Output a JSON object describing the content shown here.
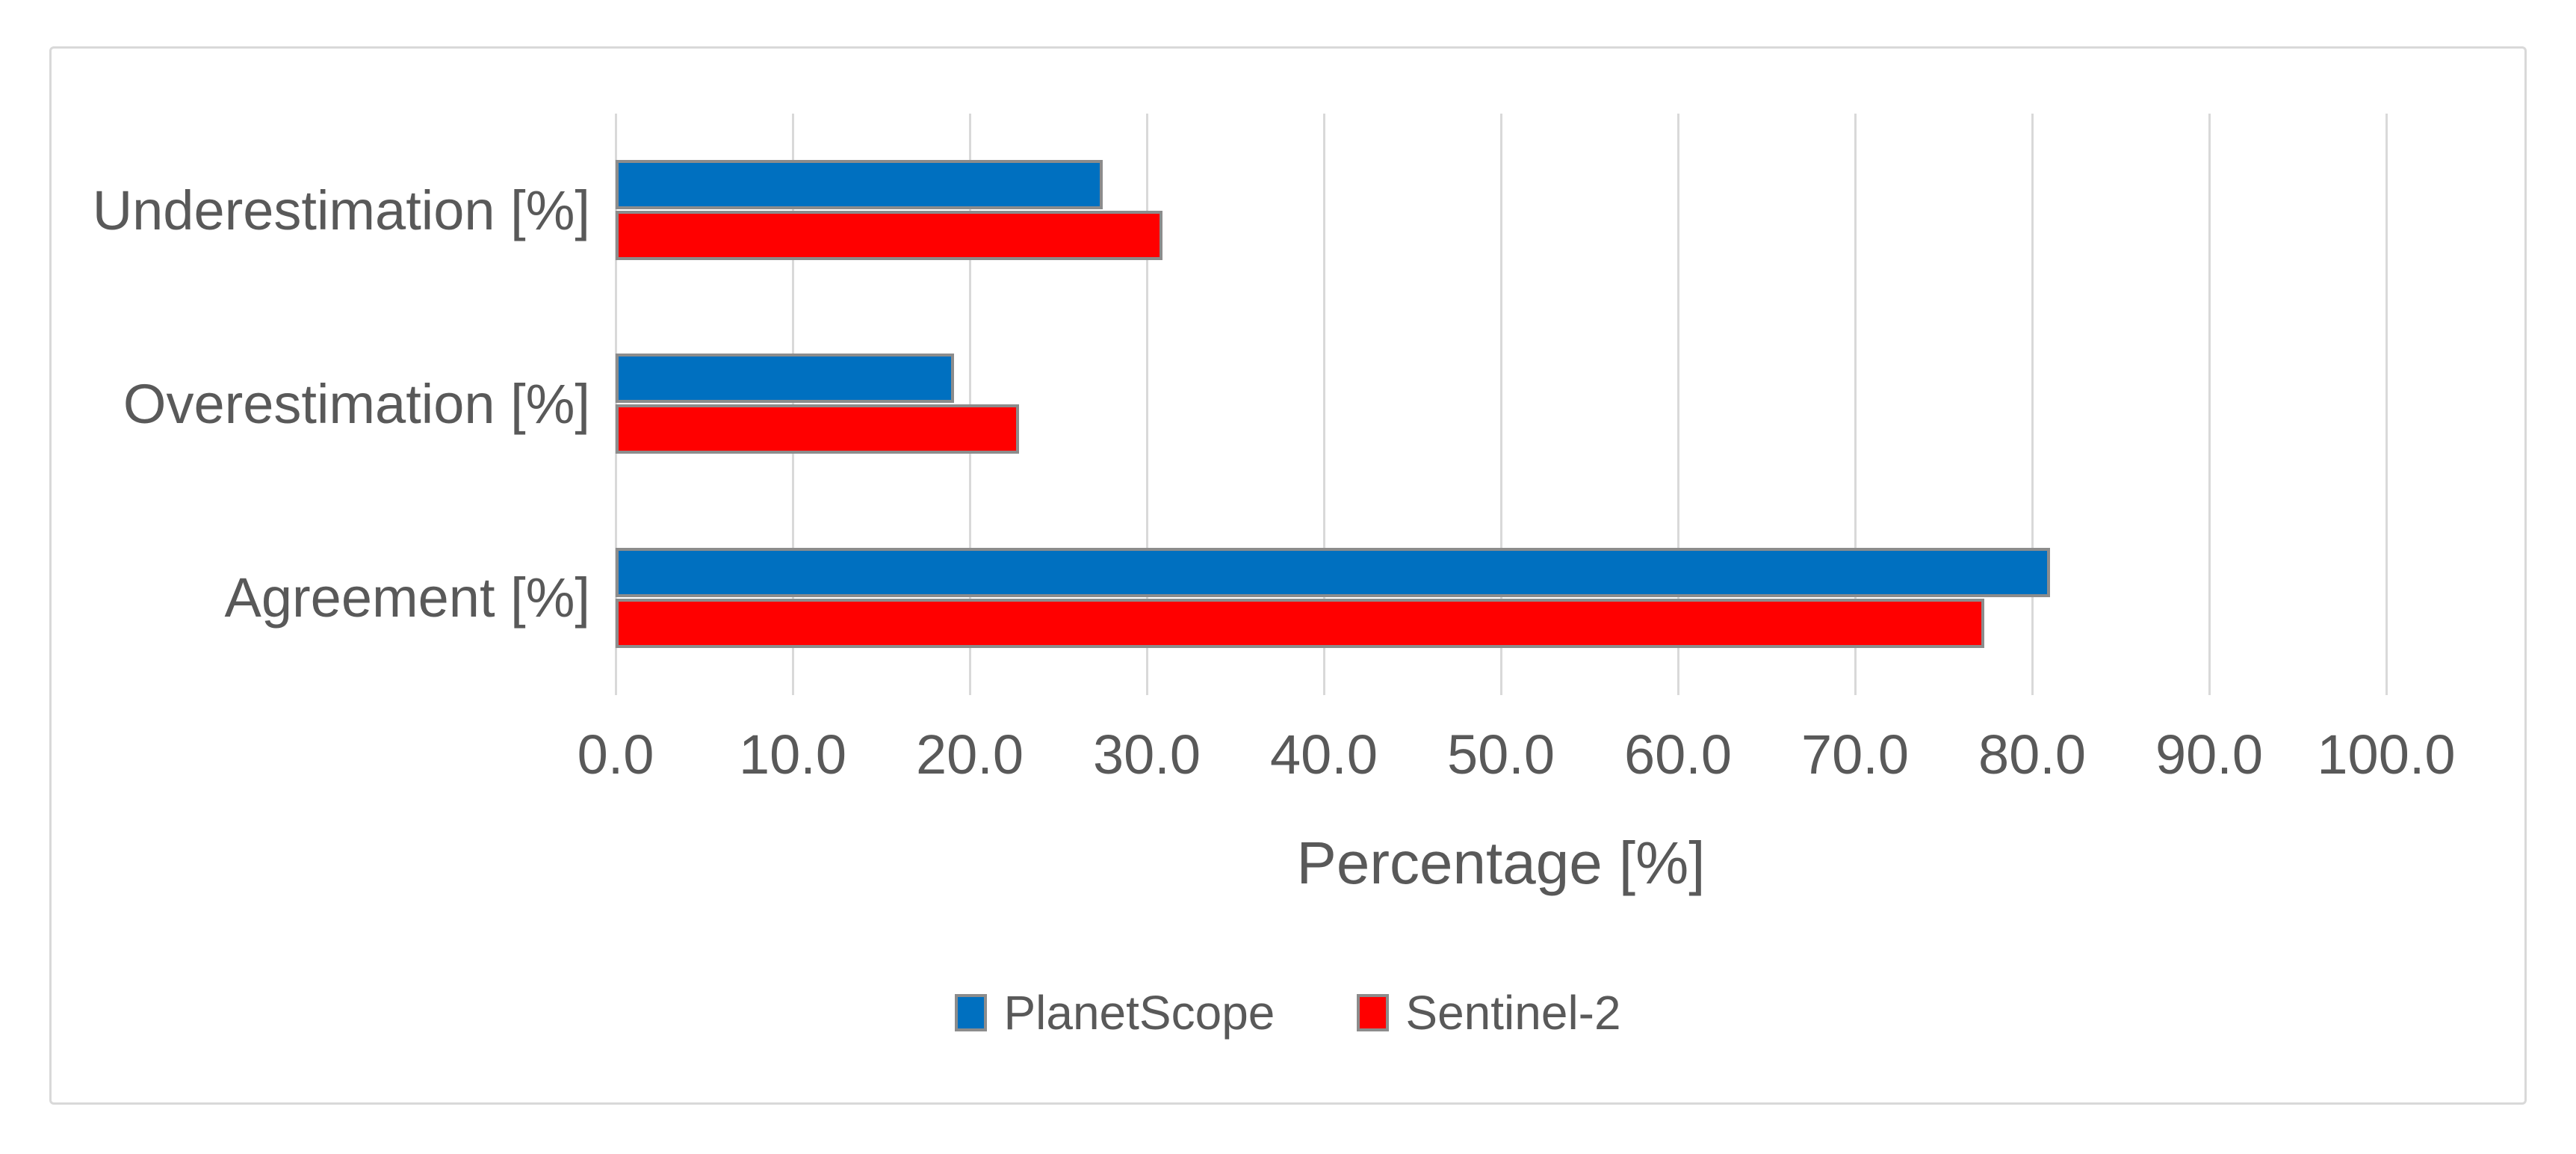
{
  "chart_data": {
    "type": "bar",
    "orientation": "horizontal",
    "categories": [
      "Underestimation [%]",
      "Overestimation [%]",
      "Agreement [%]"
    ],
    "series": [
      {
        "name": "PlanetScope",
        "color": "#0070C0",
        "values": [
          27.5,
          19.1,
          81.0
        ]
      },
      {
        "name": "Sentinel-2",
        "color": "#FF0000",
        "values": [
          30.9,
          22.8,
          77.3
        ]
      }
    ],
    "xlabel": "Percentage [%]",
    "xlim": [
      0,
      100
    ],
    "x_ticks": [
      "0.0",
      "10.0",
      "20.0",
      "30.0",
      "40.0",
      "50.0",
      "60.0",
      "70.0",
      "80.0",
      "90.0",
      "100.0"
    ],
    "grid": true,
    "legend_position": "bottom-center"
  },
  "styles": {
    "text_color": "#595959",
    "gridline_color": "#D9D9D9",
    "frame_border_color": "#D9D9D9",
    "bar_border_color": "#8C8C8C",
    "background_color": "#FFFFFF"
  }
}
